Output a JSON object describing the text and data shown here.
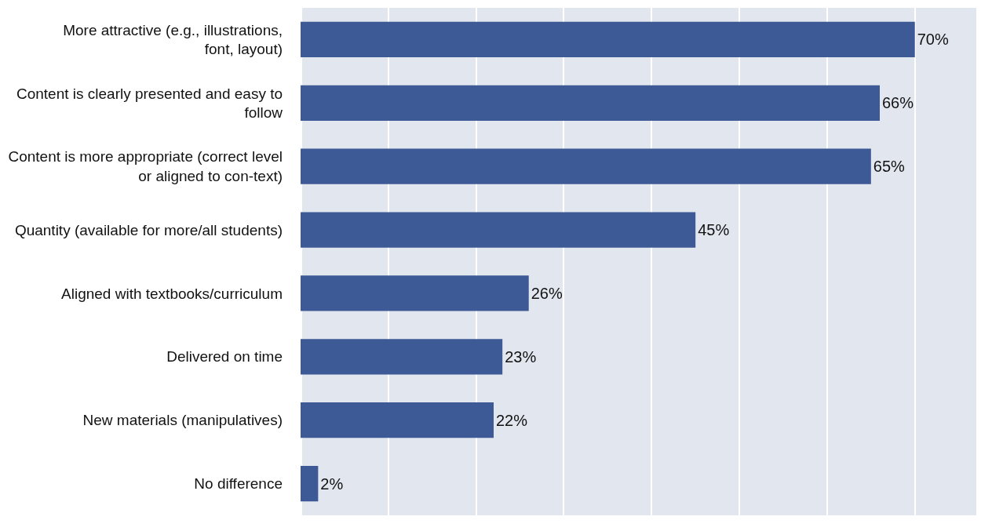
{
  "chart_data": {
    "type": "bar",
    "orientation": "horizontal",
    "categories": [
      "More attractive (e.g., illustrations, font, layout)",
      "Content is clearly presented and easy to follow",
      "Content is more appropriate (correct level or aligned to con-text)",
      "Quantity (available for more/all students)",
      "Aligned with textbooks/curriculum",
      "Delivered on time",
      "New materials (manipulatives)",
      "No difference"
    ],
    "values": [
      70,
      66,
      65,
      45,
      26,
      23,
      22,
      2
    ],
    "value_labels": [
      "70%",
      "66%",
      "65%",
      "45%",
      "26%",
      "23%",
      "22%",
      "2%"
    ],
    "color": "#3d5a96",
    "xlim": [
      0,
      77
    ],
    "xticks": [
      {
        "value": 0,
        "label": null
      },
      {
        "value": 10,
        "label": null
      },
      {
        "value": 20,
        "label": null
      },
      {
        "value": 30,
        "label": null
      },
      {
        "value": 40,
        "label": null
      },
      {
        "value": 50,
        "label": null
      },
      {
        "value": 60,
        "label": null
      },
      {
        "value": 70,
        "label": null
      }
    ],
    "grid": "x",
    "tick_labels": "y",
    "legend": false
  }
}
